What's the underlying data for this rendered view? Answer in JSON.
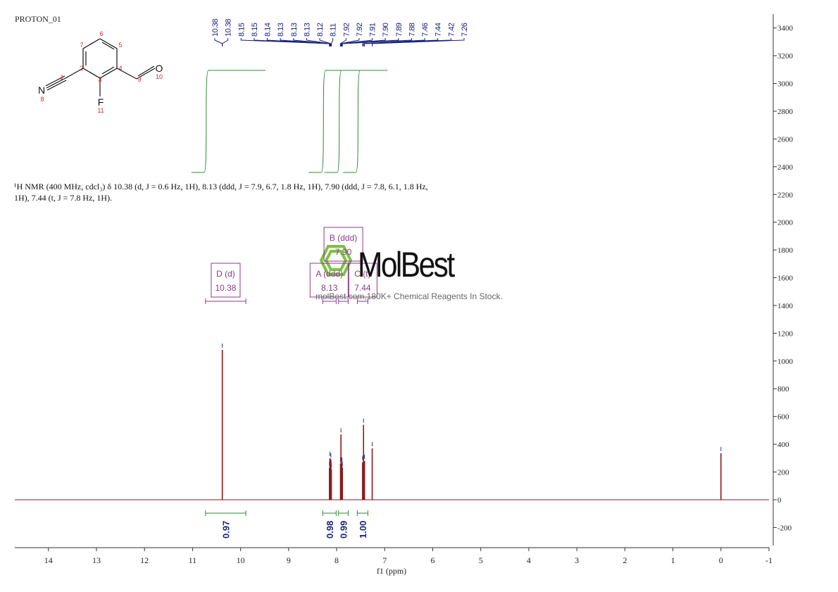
{
  "chart_data": {
    "type": "nmr",
    "title": "PROTON_01",
    "description": "¹H NMR (400 MHz, cdcl₃) δ 10.38 (d, J = 0.6 Hz, 1H), 8.13 (ddd, J = 7.9, 6.7, 1.8 Hz, 1H), 7.90 (ddd, J = 7.8, 6.1, 1.8 Hz, 1H), 7.44 (t, J = 7.8 Hz, 1H).",
    "x_label": "f1  (ppm)",
    "xlim": [
      14.7,
      -1
    ],
    "xticks": [
      14,
      13,
      12,
      11,
      10,
      9,
      8,
      7,
      6,
      5,
      4,
      3,
      2,
      1,
      0,
      -1
    ],
    "ylim": [
      -330,
      3500
    ],
    "yticks": [
      -200,
      0,
      200,
      400,
      600,
      800,
      1000,
      1200,
      1400,
      1600,
      1800,
      2000,
      2200,
      2400,
      2600,
      2800,
      3000,
      3200,
      3400
    ],
    "color": "#8b1a1a",
    "spectrum": {
      "x": [
        10.38,
        8.15,
        8.14,
        8.13,
        8.12,
        8.11,
        7.92,
        7.91,
        7.9,
        7.89,
        7.88,
        7.46,
        7.44,
        7.42,
        7.26,
        0
      ],
      "values": [
        1080,
        230,
        300,
        250,
        290,
        220,
        260,
        470,
        240,
        260,
        230,
        270,
        540,
        280,
        370,
        335
      ]
    },
    "peak_labels": [
      10.38,
      10.38,
      8.15,
      8.15,
      8.14,
      8.13,
      8.13,
      8.13,
      8.12,
      8.11,
      7.92,
      7.92,
      7.91,
      {
        "value": 7.9,
        "label": "7.90"
      },
      7.89,
      7.88,
      7.46,
      7.44,
      7.42,
      7.26
    ],
    "multiplets": [
      {
        "label": "D (d)",
        "shift": "10.38",
        "range": [
          10.73,
          9.89
        ],
        "integral": 0.97
      },
      {
        "label": "A (ddd)",
        "shift": "8.13",
        "range": [
          8.29,
          8.01
        ],
        "integral": 0.98
      },
      {
        "label": "B (ddd)",
        "shift": "7.90",
        "range": [
          7.96,
          7.76
        ],
        "integral": 0.99
      },
      {
        "label": "C (t)",
        "shift": "7.44",
        "range": [
          7.57,
          7.35
        ],
        "integral": {
          "value": 1,
          "label": "1.00"
        }
      }
    ],
    "structure": {
      "atom_labels": [
        "N",
        "F",
        "O"
      ],
      "atom_numbers": [
        "1",
        "2",
        "3",
        "4",
        "5",
        "6",
        "7",
        "8",
        "9",
        "10",
        "11"
      ]
    },
    "watermark": "MolBest",
    "watermark_note": "molBest.com,180K+ Chemical Reagents In Stock."
  }
}
